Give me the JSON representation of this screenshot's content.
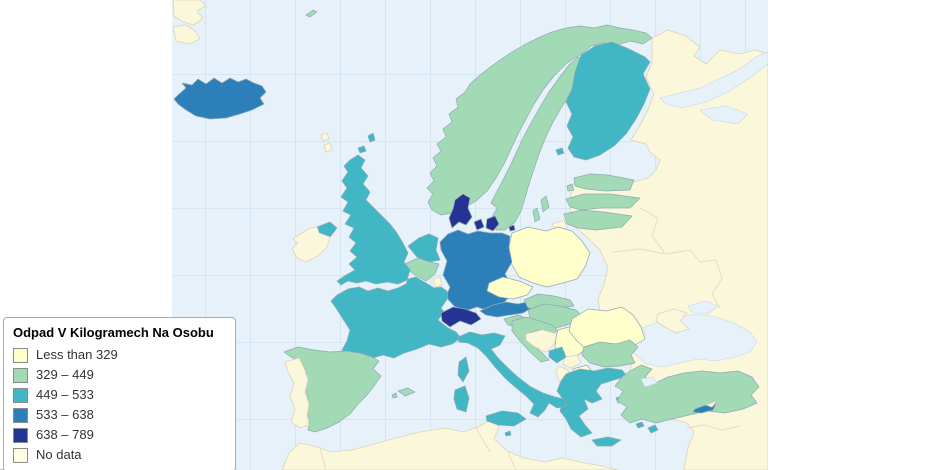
{
  "legend": {
    "title": "Odpad V Kilogramech Na Osobu",
    "items": [
      {
        "label": "Less than 329",
        "color": "#FFFFCC"
      },
      {
        "label": "329 – 449",
        "color": "#A1DAB4"
      },
      {
        "label": "449 – 533",
        "color": "#41B6C4"
      },
      {
        "label": "533 – 638",
        "color": "#2C7FB8"
      },
      {
        "label": "638 – 789",
        "color": "#253494"
      },
      {
        "label": "No data",
        "color": "#FFFFE5"
      }
    ]
  },
  "map": {
    "sea_color": "#E7F1F9",
    "grid_color": "#D6E5F2",
    "classes": {
      "c1": "#FFFFCC",
      "c2": "#A1DAB4",
      "c3": "#41B6C4",
      "c4": "#2C7FB8",
      "c5": "#253494",
      "nodata": "#FBF7DA"
    },
    "countries": [
      {
        "id": "iceland",
        "class": "c4"
      },
      {
        "id": "norway",
        "class": "c2"
      },
      {
        "id": "jan-mayen",
        "class": "c2"
      },
      {
        "id": "sweden",
        "class": "c2"
      },
      {
        "id": "finland",
        "class": "c3"
      },
      {
        "id": "estonia",
        "class": "c2"
      },
      {
        "id": "latvia",
        "class": "c2"
      },
      {
        "id": "lithuania",
        "class": "c2"
      },
      {
        "id": "kaliningrad",
        "class": "nodata"
      },
      {
        "id": "poland",
        "class": "c1"
      },
      {
        "id": "germany",
        "class": "c4"
      },
      {
        "id": "denmark",
        "class": "c5"
      },
      {
        "id": "netherlands",
        "class": "c3"
      },
      {
        "id": "belgium",
        "class": "c2"
      },
      {
        "id": "luxembourg",
        "class": "nodata"
      },
      {
        "id": "france",
        "class": "c3"
      },
      {
        "id": "switzerland",
        "class": "c5"
      },
      {
        "id": "austria",
        "class": "c4"
      },
      {
        "id": "czechia",
        "class": "c1"
      },
      {
        "id": "slovakia",
        "class": "c2"
      },
      {
        "id": "hungary",
        "class": "c2"
      },
      {
        "id": "slovenia",
        "class": "c2"
      },
      {
        "id": "croatia",
        "class": "c2"
      },
      {
        "id": "bosnia",
        "class": "nodata"
      },
      {
        "id": "serbia",
        "class": "c1"
      },
      {
        "id": "kosovo",
        "class": "nodata"
      },
      {
        "id": "montenegro",
        "class": "c3"
      },
      {
        "id": "north-macedonia",
        "class": "c1"
      },
      {
        "id": "albania",
        "class": "nodata"
      },
      {
        "id": "romania",
        "class": "c1"
      },
      {
        "id": "bulgaria",
        "class": "c2"
      },
      {
        "id": "greece",
        "class": "c3"
      },
      {
        "id": "turkey",
        "class": "c2"
      },
      {
        "id": "cyprus",
        "class": "c4"
      },
      {
        "id": "northern-cyprus",
        "class": "nodata"
      },
      {
        "id": "italy",
        "class": "c3"
      },
      {
        "id": "malta",
        "class": "c3"
      },
      {
        "id": "spain",
        "class": "c2"
      },
      {
        "id": "portugal",
        "class": "nodata"
      },
      {
        "id": "united-kingdom",
        "class": "c3"
      },
      {
        "id": "ireland",
        "class": "nodata"
      },
      {
        "id": "greenland",
        "class": "nodata"
      },
      {
        "id": "faroe-islands",
        "class": "nodata"
      },
      {
        "id": "eastern-landmass",
        "class": "nodata"
      },
      {
        "id": "crimea",
        "class": "nodata"
      },
      {
        "id": "north-africa",
        "class": "nodata"
      }
    ]
  }
}
